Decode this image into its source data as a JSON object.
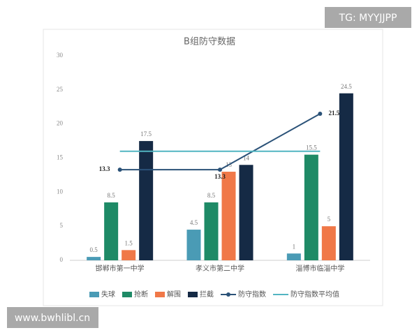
{
  "chart_data": {
    "type": "bar",
    "title": "B组防守数据",
    "categories": [
      "邯郸市第一中学",
      "孝义市第二中学",
      "淄博市临淄中学"
    ],
    "series": [
      {
        "name": "失球",
        "type": "bar",
        "color": "#4a9bb5",
        "values": [
          0.5,
          4.5,
          1
        ]
      },
      {
        "name": "抢断",
        "type": "bar",
        "color": "#1e8a66",
        "values": [
          8.5,
          8.5,
          15.5
        ]
      },
      {
        "name": "解围",
        "type": "bar",
        "color": "#f07848",
        "values": [
          1.5,
          13,
          5
        ]
      },
      {
        "name": "拦截",
        "type": "bar",
        "color": "#152a45",
        "values": [
          17.5,
          14,
          24.5
        ]
      },
      {
        "name": "防守指数",
        "type": "line",
        "color": "#2b5278",
        "values": [
          13.3,
          13.3,
          21.5
        ]
      },
      {
        "name": "防守指数平均值",
        "type": "line",
        "color": "#52b5c2",
        "values": [
          16,
          16,
          16
        ]
      }
    ],
    "ylim": [
      0,
      30
    ],
    "yticks": [
      0,
      5,
      10,
      15,
      20,
      25,
      30
    ],
    "grid": false
  },
  "watermarks": {
    "top_right": "TG: MYYJJPP",
    "bottom_left": "www.bwhlibl.cn"
  }
}
